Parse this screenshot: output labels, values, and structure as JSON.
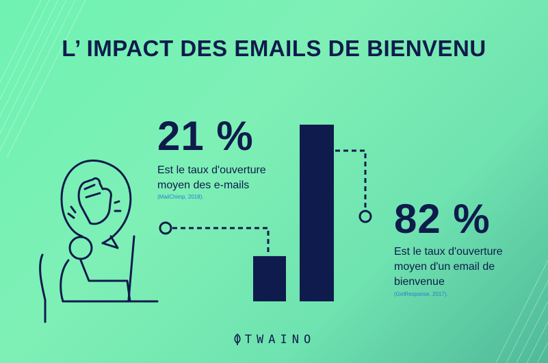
{
  "title": "L’ IMPACT DES EMAILS DE BIENVENU",
  "colors": {
    "navy": "#0f1b4c",
    "mint": "#7ef0b6",
    "source_blue": "#2a7bd1"
  },
  "stat_left": {
    "value": "21 %",
    "desc_line1": "Est le taux d'ouverture",
    "desc_line2": "moyen des e-mails",
    "source": "(MailChimp, 2018)."
  },
  "stat_right": {
    "value": "82 %",
    "desc_line1": "Est le taux d'ouverture",
    "desc_line2": "moyen d'un email de",
    "desc_line3": "bienvenue",
    "source": "(GetResponse, 2017)."
  },
  "brand": "TWAINO",
  "illustration_icon": "facepalm-person-at-desk-icon",
  "chart_data": {
    "type": "bar",
    "categories": [
      "",
      ""
    ],
    "values": [
      21,
      82
    ],
    "title": "",
    "xlabel": "",
    "ylabel": "",
    "ylim": [
      0,
      82
    ],
    "grid": false,
    "legend": "none"
  }
}
